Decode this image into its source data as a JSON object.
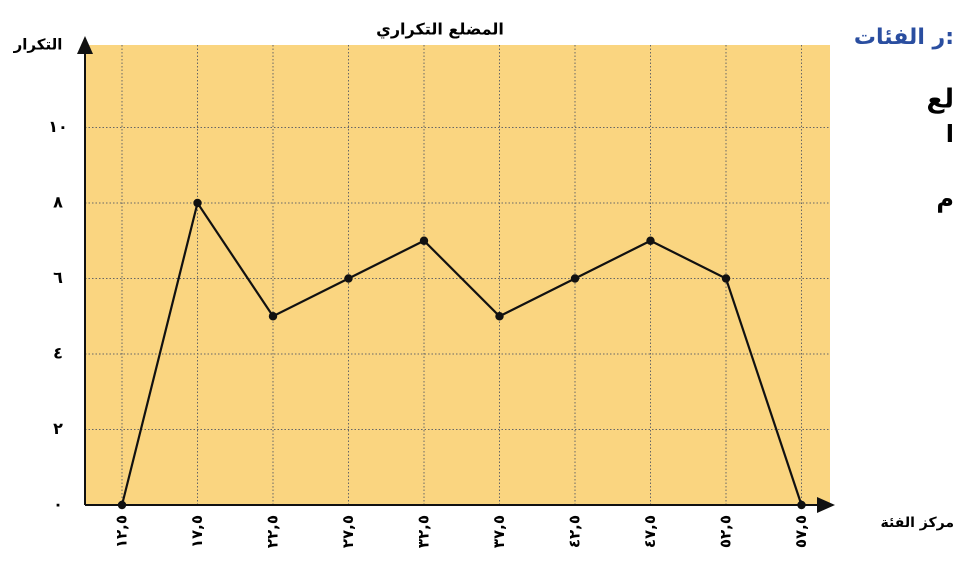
{
  "chart_data": {
    "type": "line",
    "title": "المضلع التكراري",
    "y_label": "التكرار",
    "x_label": "مركز الفئة",
    "categories": [
      "١٢,٥",
      "١٧,٥",
      "٢٢,٥",
      "٢٧,٥",
      "٣٢,٥",
      "٣٧,٥",
      "٤٢,٥",
      "٤٧,٥",
      "٥٢,٥",
      "٥٧,٥"
    ],
    "values": [
      0,
      8,
      5,
      6,
      7,
      5,
      6,
      7,
      6,
      0
    ],
    "color": "#111111",
    "background": "#fad580",
    "ylim": [
      0,
      12
    ],
    "yticks": [
      {
        "value": 0,
        "label": "٠"
      },
      {
        "value": 2,
        "label": "٢"
      },
      {
        "value": 4,
        "label": "٤"
      },
      {
        "value": 6,
        "label": "٦"
      },
      {
        "value": 8,
        "label": "٨"
      },
      {
        "value": 10,
        "label": "١٠"
      }
    ],
    "grid": true
  },
  "side_text": [
    "ر الفئات:",
    "لع",
    "ا",
    "م"
  ]
}
